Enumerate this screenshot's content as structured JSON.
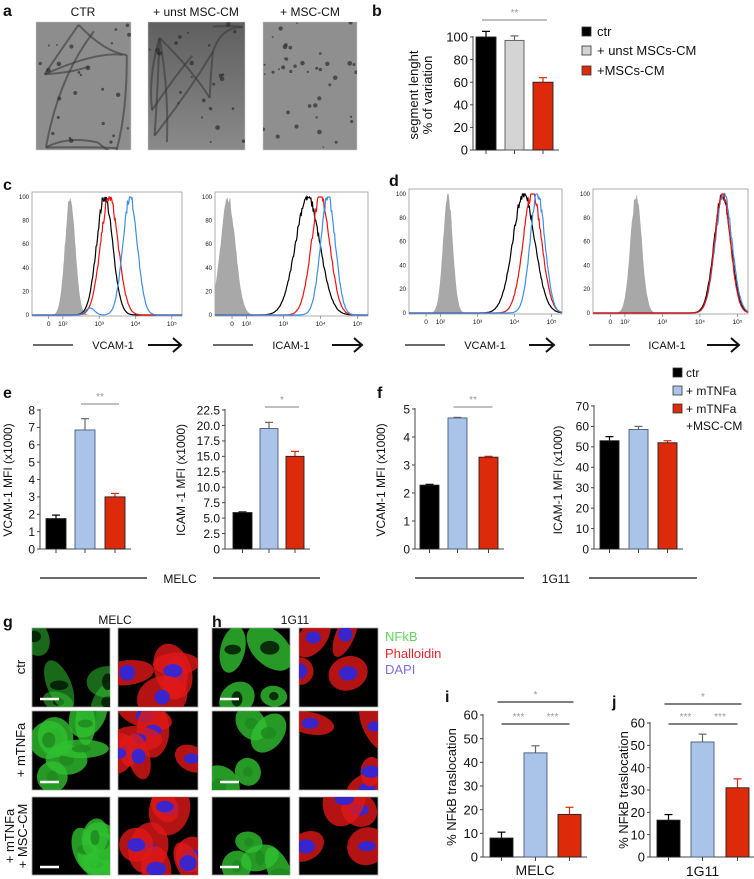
{
  "panel_labels": {
    "a": "a",
    "b": "b",
    "c": "c",
    "d": "d",
    "e": "e",
    "f": "f",
    "g": "g",
    "h": "h",
    "i": "i",
    "j": "j"
  },
  "panel_a": {
    "titles": [
      "CTR",
      "+ unst MSC-CM",
      "+ MSC-CM"
    ]
  },
  "legend_b": {
    "items": [
      "ctr",
      "+ unst MSCs-CM",
      "+MSCs-CM"
    ],
    "colors": [
      "#000000",
      "#d4d4d4",
      "#dd2a0a"
    ]
  },
  "flow_axis_labels": [
    "VCAM-1",
    "ICAM-1",
    "VCAM-1",
    "ICAM-1"
  ],
  "legend_ef": {
    "items": [
      "ctr",
      "+ mTNFa",
      "+ mTNFa",
      "+MSC-CM"
    ],
    "colors": [
      "#000000",
      "#a9c4e8",
      "#dd2a0a"
    ]
  },
  "group_labels": {
    "e": "MELC",
    "f": "1G11"
  },
  "microscopy": {
    "col_titles": [
      "MELC",
      "1G11"
    ],
    "row_labels": [
      "ctr",
      "+ mTNFa",
      "+ mTNFa",
      "+ MSC-CM"
    ],
    "stain_legend": [
      {
        "label": "NFkB",
        "color": "#5cd65c"
      },
      {
        "label": "Phalloidin",
        "color": "#e8262a"
      },
      {
        "label": "DAPI",
        "color": "#7a6fe0"
      }
    ]
  },
  "chart_data": [
    {
      "id": "b",
      "type": "bar",
      "ylabel": [
        "segment lenght",
        "% of variation"
      ],
      "ylim": [
        0,
        100
      ],
      "ytick_labels": [
        "0",
        "20",
        "40",
        "60",
        "80",
        "100"
      ],
      "categories": [
        "ctr",
        "+ unst MSCs-CM",
        "+MSCs-CM"
      ],
      "values": [
        100,
        97,
        60
      ],
      "errors": [
        5,
        4,
        4
      ],
      "colors": [
        "#000000",
        "#d4d4d4",
        "#dd2a0a"
      ],
      "significance": [
        {
          "from": 0,
          "to": 2,
          "label": "**"
        }
      ]
    },
    {
      "id": "c1",
      "type": "histogram",
      "xlabel": "VCAM-1",
      "ylim": [
        0,
        100
      ],
      "ytick_labels": [
        "0",
        "20",
        "40",
        "60",
        "80",
        "100"
      ],
      "xtick_labels": [
        "0",
        "10²",
        "10³",
        "10⁴",
        "10⁵"
      ],
      "xtick_log": [
        1.61,
        2,
        3,
        4,
        5
      ],
      "series": [
        {
          "color": "#9a9a9a",
          "fill": true,
          "mode_log": 2.2,
          "spread": 0.14
        },
        {
          "color": "#000000",
          "mode_log": 3.15,
          "spread": 0.22
        },
        {
          "color": "#ee1111",
          "mode_log": 3.28,
          "spread": 0.24
        },
        {
          "color": "#3b8fe6",
          "mode_log": 3.85,
          "spread": 0.2,
          "shoulder_log": 2.75,
          "shoulder_height": 6
        }
      ]
    },
    {
      "id": "c2",
      "type": "histogram",
      "xlabel": "ICAM-1",
      "ylim": [
        0,
        100
      ],
      "ytick_labels": [
        "0",
        "20",
        "40",
        "60",
        "80",
        "100"
      ],
      "xtick_labels": [
        "0",
        "10²",
        "10³",
        "10⁴",
        "10⁵"
      ],
      "xtick_log": [
        1.61,
        2,
        3,
        4,
        5
      ],
      "series": [
        {
          "color": "#9a9a9a",
          "fill": true,
          "mode_log": 1.5,
          "spread": 0.2
        },
        {
          "color": "#000000",
          "mode_log": 3.65,
          "spread": 0.33
        },
        {
          "color": "#ee1111",
          "mode_log": 4.0,
          "spread": 0.25
        },
        {
          "color": "#3b8fe6",
          "mode_log": 4.2,
          "spread": 0.2
        }
      ]
    },
    {
      "id": "d1",
      "type": "histogram",
      "xlabel": "VCAM-1",
      "ylim": [
        0,
        100
      ],
      "ytick_labels": [
        "0",
        "20",
        "40",
        "60",
        "80",
        "100"
      ],
      "xtick_labels": [
        "0",
        "10²",
        "10³",
        "10⁴",
        "10⁵"
      ],
      "xtick_log": [
        1.61,
        2,
        3,
        4,
        5
      ],
      "series": [
        {
          "color": "#9a9a9a",
          "fill": true,
          "mode_log": 2.2,
          "spread": 0.13
        },
        {
          "color": "#000000",
          "mode_log": 4.25,
          "spread": 0.3
        },
        {
          "color": "#ee1111",
          "mode_log": 4.48,
          "spread": 0.25
        },
        {
          "color": "#3b8fe6",
          "mode_log": 4.62,
          "spread": 0.2
        }
      ]
    },
    {
      "id": "d2",
      "type": "histogram",
      "xlabel": "ICAM-1",
      "ylim": [
        0,
        100
      ],
      "ytick_labels": [
        "0",
        "20",
        "40",
        "60",
        "80",
        "100"
      ],
      "xtick_labels": [
        "0",
        "10²",
        "10³",
        "10⁴",
        "10⁵"
      ],
      "xtick_log": [
        1.61,
        2,
        3,
        4,
        5
      ],
      "series": [
        {
          "color": "#9a9a9a",
          "fill": true,
          "mode_log": 2.3,
          "spread": 0.15
        },
        {
          "color": "#000000",
          "mode_log": 4.6,
          "spread": 0.22
        },
        {
          "color": "#3b8fe6",
          "mode_log": 4.63,
          "spread": 0.22
        },
        {
          "color": "#ee1111",
          "mode_log": 4.6,
          "spread": 0.21
        }
      ]
    },
    {
      "id": "e1",
      "type": "bar",
      "ylabel": [
        "VCAM-1 MFI  (x1000)"
      ],
      "ylim": [
        0,
        8
      ],
      "ytick_labels": [
        "0",
        "1",
        "2",
        "3",
        "4",
        "5",
        "6",
        "7",
        "8"
      ],
      "categories": [
        "ctr",
        "+ mTNFa",
        "+ mTNFa +MSC-CM"
      ],
      "values": [
        1.75,
        6.85,
        3.0
      ],
      "errors": [
        0.2,
        0.65,
        0.2
      ],
      "colors": [
        "#000000",
        "#a9c4e8",
        "#dd2a0a"
      ],
      "significance": [
        {
          "from": 1,
          "to": 2,
          "label": "**"
        }
      ]
    },
    {
      "id": "e2",
      "type": "bar",
      "ylabel": [
        "ICAM -1 MFI (x1000)"
      ],
      "ylim": [
        0,
        22.5
      ],
      "ytick_labels": [
        "0",
        "2.5",
        "5.0",
        "7.5",
        "10.0",
        "12.5",
        "15.0",
        "17.5",
        "20.0",
        "22.5"
      ],
      "categories": [
        "ctr",
        "+ mTNFa",
        "+ mTNFa +MSC-CM"
      ],
      "values": [
        5.9,
        19.5,
        15.0
      ],
      "errors": [
        0.1,
        1.0,
        0.8
      ],
      "colors": [
        "#000000",
        "#a9c4e8",
        "#dd2a0a"
      ],
      "significance": [
        {
          "from": 1,
          "to": 2,
          "label": "*"
        }
      ]
    },
    {
      "id": "f1",
      "type": "bar",
      "ylabel": [
        "VCAM-1 MFI (x1000)"
      ],
      "ylim": [
        0,
        5
      ],
      "ytick_labels": [
        "0",
        "1",
        "2",
        "3",
        "4",
        "5"
      ],
      "categories": [
        "ctr",
        "+ mTNFa",
        "+ mTNFa +MSC-CM"
      ],
      "values": [
        2.28,
        4.68,
        3.28
      ],
      "errors": [
        0.03,
        0.02,
        0.03
      ],
      "colors": [
        "#000000",
        "#a9c4e8",
        "#dd2a0a"
      ],
      "significance": [
        {
          "from": 1,
          "to": 2,
          "label": "**"
        }
      ]
    },
    {
      "id": "f2",
      "type": "bar",
      "ylabel": [
        "ICAM-1 MFI (x1000)"
      ],
      "ylim": [
        0,
        70
      ],
      "ytick_labels": [
        "0",
        "10",
        "20",
        "30",
        "40",
        "50",
        "60",
        "70"
      ],
      "categories": [
        "ctr",
        "+ mTNFa",
        "+ mTNFa +MSC-CM"
      ],
      "values": [
        53,
        58.5,
        52
      ],
      "errors": [
        2,
        1.5,
        1
      ],
      "colors": [
        "#000000",
        "#a9c4e8",
        "#dd2a0a"
      ],
      "significance": []
    },
    {
      "id": "i",
      "type": "bar",
      "ylabel": [
        "% NFkB traslocation"
      ],
      "xlabel": "MELC",
      "ylim": [
        0,
        60
      ],
      "ytick_labels": [
        "0",
        "10",
        "20",
        "30",
        "40",
        "50",
        "60"
      ],
      "categories": [
        "ctr",
        "+ mTNFa",
        "+ mTNFa +MSC-CM"
      ],
      "values": [
        8,
        44,
        18
      ],
      "errors": [
        2.5,
        3,
        3
      ],
      "colors": [
        "#000000",
        "#a9c4e8",
        "#dd2a0a"
      ],
      "significance": [
        {
          "from": 0,
          "to": 2,
          "label": "*"
        },
        {
          "from": 0,
          "to": 1,
          "label": "***"
        },
        {
          "from": 1,
          "to": 2,
          "label": "***"
        }
      ]
    },
    {
      "id": "j",
      "type": "bar",
      "ylabel": [
        "% NFkB traslocation"
      ],
      "xlabel": "1G11",
      "ylim": [
        0,
        60
      ],
      "ytick_labels": [
        "0",
        "10",
        "20",
        "30",
        "40",
        "50",
        "60"
      ],
      "categories": [
        "ctr",
        "+ mTNFa",
        "+ mTNFa +MSC-CM"
      ],
      "values": [
        16.5,
        51.5,
        31
      ],
      "errors": [
        2.5,
        3.5,
        4
      ],
      "colors": [
        "#000000",
        "#a9c4e8",
        "#dd2a0a"
      ],
      "significance": [
        {
          "from": 0,
          "to": 2,
          "label": "*"
        },
        {
          "from": 0,
          "to": 1,
          "label": "***"
        },
        {
          "from": 1,
          "to": 2,
          "label": "***"
        }
      ]
    }
  ]
}
